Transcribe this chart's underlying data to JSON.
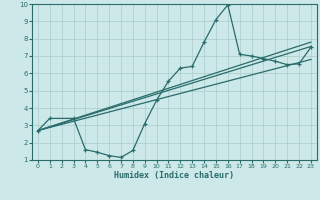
{
  "xlabel": "Humidex (Indice chaleur)",
  "bg_color": "#cce8e8",
  "grid_color": "#aacccc",
  "line_color": "#2a6b6b",
  "xlim": [
    -0.5,
    23.5
  ],
  "ylim": [
    1,
    10
  ],
  "xticks": [
    0,
    1,
    2,
    3,
    4,
    5,
    6,
    7,
    8,
    9,
    10,
    11,
    12,
    13,
    14,
    15,
    16,
    17,
    18,
    19,
    20,
    21,
    22,
    23
  ],
  "yticks": [
    1,
    2,
    3,
    4,
    5,
    6,
    7,
    8,
    9,
    10
  ],
  "line1_x": [
    0,
    23
  ],
  "line1_y": [
    2.7,
    7.8
  ],
  "line2_x": [
    0,
    23
  ],
  "line2_y": [
    2.7,
    7.55
  ],
  "line3_x": [
    0,
    23
  ],
  "line3_y": [
    2.7,
    6.8
  ],
  "curve_x": [
    0,
    1,
    3,
    4,
    5,
    6,
    7,
    8,
    9,
    10,
    11,
    12,
    13,
    14,
    15,
    16,
    17,
    18,
    19,
    20,
    21,
    22,
    23
  ],
  "curve_y": [
    2.7,
    3.4,
    3.4,
    1.6,
    1.45,
    1.25,
    1.15,
    1.55,
    3.1,
    4.45,
    5.55,
    6.3,
    6.4,
    7.8,
    9.1,
    9.95,
    7.1,
    7.0,
    6.85,
    6.7,
    6.5,
    6.55,
    7.5
  ]
}
